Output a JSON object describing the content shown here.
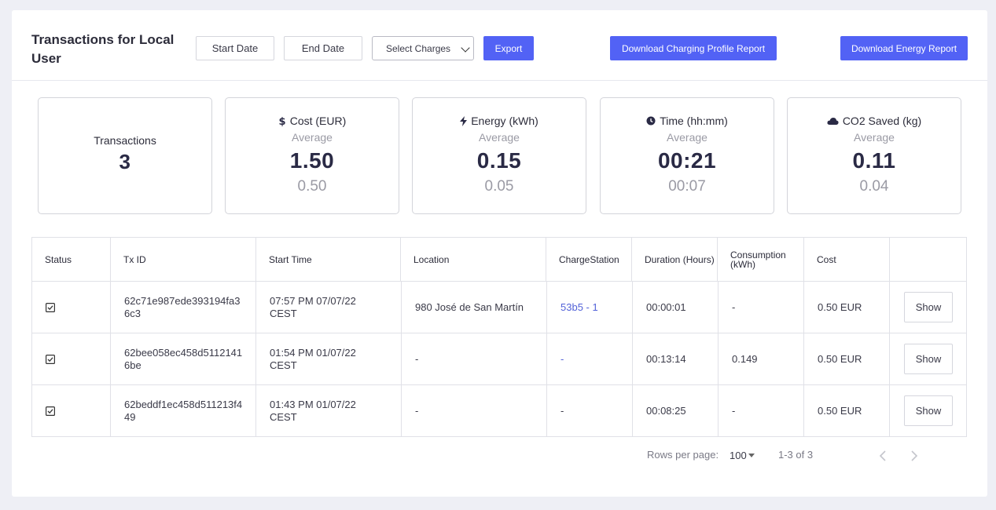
{
  "header": {
    "title": "Transactions for Local User",
    "start_date": "Start Date",
    "end_date": "End Date",
    "select_charges": "Select Charges",
    "export": "Export",
    "download_profile": "Download Charging Profile Report",
    "download_energy": "Download Energy Report"
  },
  "stats": {
    "transactions": {
      "label": "Transactions",
      "value": "3"
    },
    "cost": {
      "label": "Cost (EUR)",
      "sub": "Average",
      "value": "1.50",
      "avg": "0.50",
      "icon": "dollar-icon"
    },
    "energy": {
      "label": "Energy (kWh)",
      "sub": "Average",
      "value": "0.15",
      "avg": "0.05",
      "icon": "lightning-icon"
    },
    "time": {
      "label": "Time (hh:mm)",
      "sub": "Average",
      "value": "00:21",
      "avg": "00:07",
      "icon": "clock-icon"
    },
    "co2": {
      "label": "CO2 Saved (kg)",
      "sub": "Average",
      "value": "0.11",
      "avg": "0.04",
      "icon": "cloud-icon"
    }
  },
  "table": {
    "columns": [
      "Status",
      "Tx ID",
      "Start Time",
      "Location",
      "ChargeStation",
      "Duration (Hours)",
      "Consumption (kWh)",
      "Cost",
      ""
    ],
    "rows": [
      {
        "txid": "62c71e987ede393194fa36c3",
        "start": "07:57 PM 07/07/22 CEST",
        "location": "980 José de San Martín",
        "station": "53b5 - 1",
        "duration": "00:00:01",
        "consumption": "-",
        "cost": "0.50 EUR",
        "action": "Show"
      },
      {
        "txid": "62bee058ec458d51121416be",
        "start": "01:54 PM 01/07/22 CEST",
        "location": "-",
        "station": "-",
        "duration": "00:13:14",
        "consumption": "0.149",
        "cost": "0.50 EUR",
        "action": "Show"
      },
      {
        "txid": "62beddf1ec458d511213f449",
        "start": "01:43 PM 01/07/22 CEST",
        "location": "-",
        "station": "-",
        "duration": "00:08:25",
        "consumption": "-",
        "cost": "0.50 EUR",
        "action": "Show"
      }
    ]
  },
  "pagination": {
    "rows_per_page_label": "Rows per page:",
    "rows_per_page": "100",
    "range": "1-3 of 3"
  }
}
